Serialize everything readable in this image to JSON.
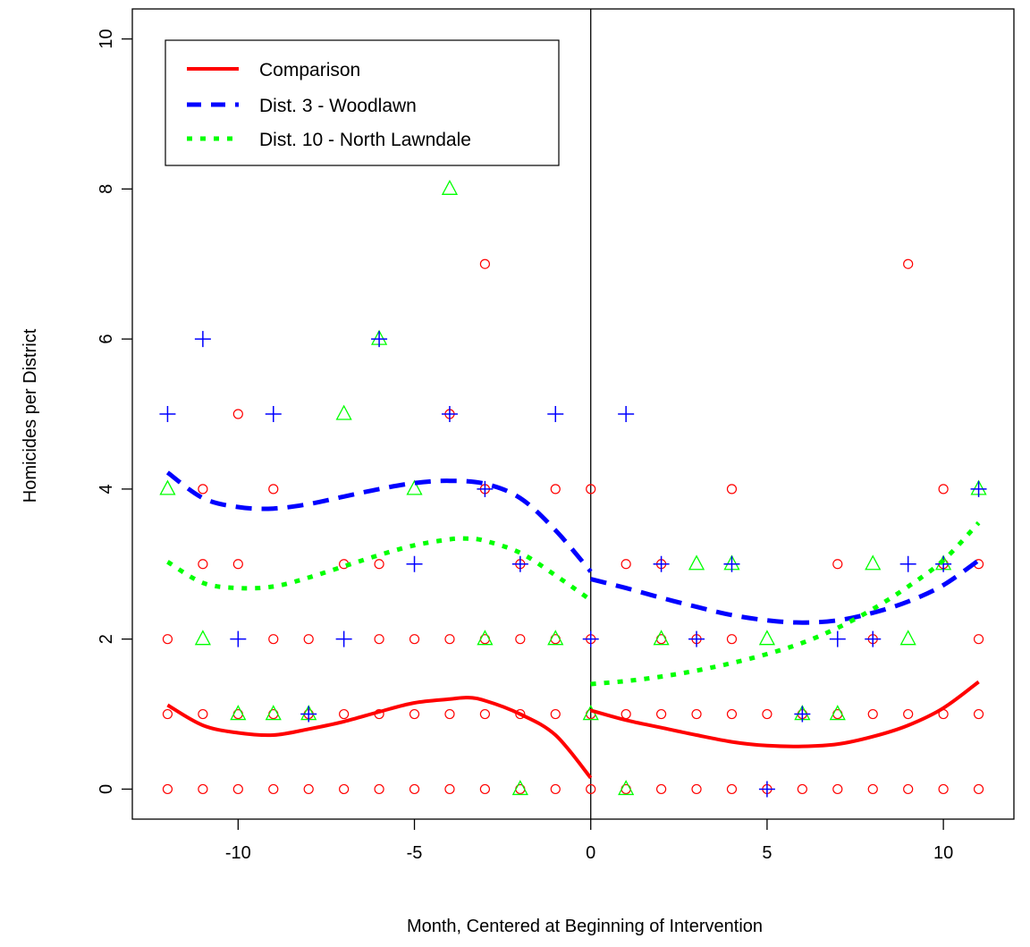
{
  "chart_data": {
    "type": "scatter",
    "title": "",
    "xlabel": "Month, Centered at Beginning of Intervention",
    "ylabel": "Homicides per District",
    "xlim": [
      -13,
      12
    ],
    "ylim": [
      -0.4,
      10.4
    ],
    "xticks": [
      -10,
      -5,
      0,
      5,
      10
    ],
    "xtick_labels": [
      "-10",
      "-5",
      "0",
      "5",
      "10"
    ],
    "yticks": [
      0,
      2,
      4,
      6,
      8,
      10
    ],
    "ytick_labels": [
      "0",
      "2",
      "4",
      "6",
      "8",
      "10"
    ],
    "grid": false,
    "vline_x": 0,
    "legend_position": "top-left",
    "points": {
      "comparison": {
        "color": "#ff0000",
        "marker": "circle",
        "data": [
          [
            -12,
            0
          ],
          [
            -12,
            1
          ],
          [
            -12,
            2
          ],
          [
            -11,
            0
          ],
          [
            -11,
            1
          ],
          [
            -11,
            3
          ],
          [
            -11,
            4
          ],
          [
            -10,
            0
          ],
          [
            -10,
            1
          ],
          [
            -10,
            3
          ],
          [
            -10,
            5
          ],
          [
            -9,
            0
          ],
          [
            -9,
            1
          ],
          [
            -9,
            2
          ],
          [
            -9,
            4
          ],
          [
            -8,
            0
          ],
          [
            -8,
            1
          ],
          [
            -8,
            2
          ],
          [
            -7,
            0
          ],
          [
            -7,
            1
          ],
          [
            -7,
            3
          ],
          [
            -6,
            0
          ],
          [
            -6,
            1
          ],
          [
            -6,
            2
          ],
          [
            -6,
            3
          ],
          [
            -5,
            0
          ],
          [
            -5,
            1
          ],
          [
            -5,
            2
          ],
          [
            -4,
            0
          ],
          [
            -4,
            1
          ],
          [
            -4,
            2
          ],
          [
            -4,
            5
          ],
          [
            -3,
            0
          ],
          [
            -3,
            1
          ],
          [
            -3,
            2
          ],
          [
            -3,
            4
          ],
          [
            -3,
            7
          ],
          [
            -2,
            0
          ],
          [
            -2,
            1
          ],
          [
            -2,
            2
          ],
          [
            -2,
            3
          ],
          [
            -1,
            0
          ],
          [
            -1,
            1
          ],
          [
            -1,
            2
          ],
          [
            -1,
            4
          ],
          [
            0,
            0
          ],
          [
            0,
            1
          ],
          [
            0,
            2
          ],
          [
            0,
            4
          ],
          [
            1,
            0
          ],
          [
            1,
            1
          ],
          [
            1,
            3
          ],
          [
            2,
            0
          ],
          [
            2,
            1
          ],
          [
            2,
            2
          ],
          [
            2,
            3
          ],
          [
            3,
            0
          ],
          [
            3,
            1
          ],
          [
            3,
            2
          ],
          [
            4,
            0
          ],
          [
            4,
            1
          ],
          [
            4,
            2
          ],
          [
            4,
            4
          ],
          [
            5,
            0
          ],
          [
            5,
            1
          ],
          [
            6,
            0
          ],
          [
            6,
            1
          ],
          [
            7,
            0
          ],
          [
            7,
            1
          ],
          [
            7,
            3
          ],
          [
            8,
            0
          ],
          [
            8,
            1
          ],
          [
            8,
            2
          ],
          [
            9,
            0
          ],
          [
            9,
            1
          ],
          [
            9,
            7
          ],
          [
            10,
            0
          ],
          [
            10,
            1
          ],
          [
            10,
            3
          ],
          [
            10,
            4
          ],
          [
            11,
            0
          ],
          [
            11,
            1
          ],
          [
            11,
            2
          ],
          [
            11,
            3
          ]
        ]
      },
      "district3": {
        "color": "#0000ff",
        "marker": "plus",
        "data": [
          [
            -12,
            5
          ],
          [
            -11,
            6
          ],
          [
            -10,
            2
          ],
          [
            -9,
            5
          ],
          [
            -8,
            1
          ],
          [
            -7,
            2
          ],
          [
            -6,
            6
          ],
          [
            -5,
            3
          ],
          [
            -4,
            5
          ],
          [
            -3,
            4
          ],
          [
            -2,
            3
          ],
          [
            -1,
            5
          ],
          [
            0,
            2
          ],
          [
            1,
            5
          ],
          [
            2,
            3
          ],
          [
            3,
            2
          ],
          [
            4,
            3
          ],
          [
            5,
            0
          ],
          [
            6,
            1
          ],
          [
            7,
            2
          ],
          [
            8,
            2
          ],
          [
            9,
            3
          ],
          [
            10,
            3
          ],
          [
            11,
            4
          ]
        ]
      },
      "district10": {
        "color": "#00ff00",
        "marker": "triangle",
        "data": [
          [
            -12,
            4
          ],
          [
            -11,
            2
          ],
          [
            -10,
            1
          ],
          [
            -9,
            1
          ],
          [
            -8,
            1
          ],
          [
            -7,
            5
          ],
          [
            -6,
            6
          ],
          [
            -5,
            4
          ],
          [
            -4,
            8
          ],
          [
            -3,
            2
          ],
          [
            -2,
            0
          ],
          [
            -1,
            2
          ],
          [
            0,
            1
          ],
          [
            1,
            0
          ],
          [
            2,
            2
          ],
          [
            3,
            3
          ],
          [
            4,
            3
          ],
          [
            5,
            2
          ],
          [
            6,
            1
          ],
          [
            7,
            1
          ],
          [
            8,
            3
          ],
          [
            9,
            2
          ],
          [
            10,
            3
          ],
          [
            11,
            4
          ]
        ]
      }
    },
    "series": [
      {
        "name": "Comparison",
        "color": "#ff0000",
        "line_style": "solid",
        "pre": {
          "x": [
            -12,
            -11,
            -10,
            -9,
            -8,
            -7,
            -6,
            -5,
            -4,
            -3.5,
            -3,
            -2,
            -1,
            0
          ],
          "y": [
            1.12,
            0.85,
            0.75,
            0.72,
            0.8,
            0.9,
            1.03,
            1.15,
            1.2,
            1.22,
            1.18,
            1.0,
            0.72,
            0.15
          ]
        },
        "post": {
          "x": [
            0,
            1,
            2,
            3,
            4,
            5,
            6,
            7,
            8,
            9,
            10,
            11
          ],
          "y": [
            1.05,
            0.92,
            0.82,
            0.72,
            0.63,
            0.58,
            0.57,
            0.6,
            0.7,
            0.85,
            1.08,
            1.43
          ]
        }
      },
      {
        "name": "Dist. 3 - Woodlawn",
        "color": "#0000ff",
        "line_style": "dashed",
        "pre": {
          "x": [
            -12,
            -11,
            -10,
            -9,
            -8,
            -7,
            -6,
            -5,
            -4,
            -3,
            -2,
            -1,
            0
          ],
          "y": [
            4.22,
            3.88,
            3.76,
            3.74,
            3.8,
            3.9,
            4.0,
            4.08,
            4.11,
            4.07,
            3.88,
            3.45,
            2.9
          ]
        },
        "post": {
          "x": [
            0,
            1,
            2,
            3,
            4,
            5,
            6,
            7,
            8,
            9,
            10,
            11
          ],
          "y": [
            2.8,
            2.68,
            2.55,
            2.43,
            2.32,
            2.25,
            2.22,
            2.25,
            2.35,
            2.5,
            2.72,
            3.05
          ]
        }
      },
      {
        "name": "Dist. 10 - North Lawndale",
        "color": "#00ff00",
        "line_style": "dotted",
        "pre": {
          "x": [
            -12,
            -11,
            -10,
            -9,
            -8,
            -7,
            -6,
            -5,
            -4,
            -3.5,
            -3,
            -2,
            -1,
            0
          ],
          "y": [
            3.03,
            2.75,
            2.68,
            2.7,
            2.82,
            2.97,
            3.12,
            3.25,
            3.33,
            3.34,
            3.31,
            3.15,
            2.85,
            2.52
          ]
        },
        "post": {
          "x": [
            0,
            1,
            2,
            3,
            4,
            5,
            6,
            7,
            8,
            9,
            10,
            11
          ],
          "y": [
            1.4,
            1.44,
            1.5,
            1.58,
            1.68,
            1.8,
            1.95,
            2.15,
            2.4,
            2.7,
            3.05,
            3.55
          ]
        }
      }
    ]
  }
}
